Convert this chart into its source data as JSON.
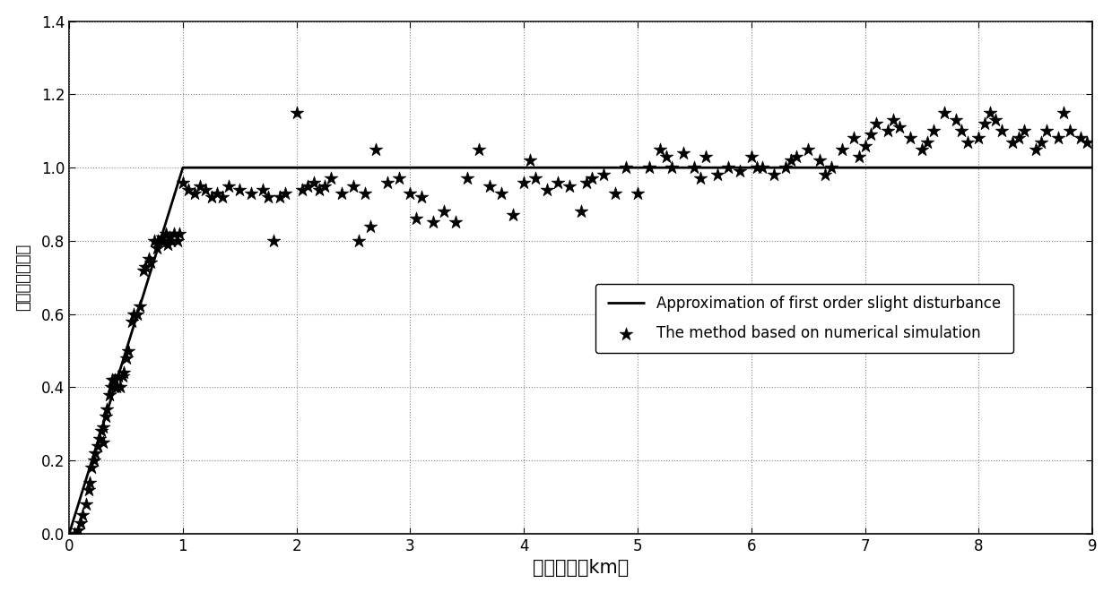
{
  "title": "",
  "xlabel": "光学厚度（km）",
  "ylabel": "归一化闪烁指数",
  "xlim": [
    0,
    9
  ],
  "ylim": [
    0,
    1.4
  ],
  "xticks": [
    0,
    1,
    2,
    3,
    4,
    5,
    6,
    7,
    8,
    9
  ],
  "yticks": [
    0,
    0.2,
    0.4,
    0.6,
    0.8,
    1.0,
    1.2,
    1.4
  ],
  "line_x": [
    0,
    1.0,
    9.0
  ],
  "line_y": [
    0,
    1.0,
    1.0
  ],
  "scatter_x": [
    0.05,
    0.08,
    0.1,
    0.12,
    0.15,
    0.17,
    0.18,
    0.2,
    0.22,
    0.23,
    0.25,
    0.27,
    0.28,
    0.3,
    0.3,
    0.32,
    0.33,
    0.35,
    0.37,
    0.38,
    0.4,
    0.4,
    0.42,
    0.43,
    0.45,
    0.47,
    0.48,
    0.5,
    0.52,
    0.55,
    0.57,
    0.6,
    0.62,
    0.65,
    0.67,
    0.7,
    0.72,
    0.75,
    0.77,
    0.78,
    0.8,
    0.82,
    0.83,
    0.85,
    0.87,
    0.88,
    0.9,
    0.92,
    0.95,
    0.97,
    1.0,
    1.05,
    1.1,
    1.15,
    1.2,
    1.25,
    1.3,
    1.35,
    1.4,
    1.5,
    1.6,
    1.7,
    1.75,
    1.8,
    1.85,
    1.9,
    2.0,
    2.05,
    2.1,
    2.15,
    2.2,
    2.25,
    2.3,
    2.4,
    2.5,
    2.55,
    2.6,
    2.65,
    2.7,
    2.8,
    2.9,
    3.0,
    3.05,
    3.1,
    3.2,
    3.3,
    3.4,
    3.5,
    3.6,
    3.7,
    3.8,
    3.9,
    4.0,
    4.05,
    4.1,
    4.2,
    4.3,
    4.4,
    4.5,
    4.55,
    4.6,
    4.7,
    4.8,
    4.9,
    5.0,
    5.1,
    5.2,
    5.25,
    5.3,
    5.4,
    5.5,
    5.55,
    5.6,
    5.7,
    5.8,
    5.9,
    6.0,
    6.05,
    6.1,
    6.2,
    6.3,
    6.35,
    6.4,
    6.5,
    6.6,
    6.65,
    6.7,
    6.8,
    6.9,
    6.95,
    7.0,
    7.05,
    7.1,
    7.2,
    7.25,
    7.3,
    7.4,
    7.5,
    7.55,
    7.6,
    7.7,
    7.8,
    7.85,
    7.9,
    8.0,
    8.05,
    8.1,
    8.15,
    8.2,
    8.3,
    8.35,
    8.4,
    8.5,
    8.55,
    8.6,
    8.7,
    8.75,
    8.8,
    8.9,
    8.95
  ],
  "scatter_y": [
    0.0,
    0.01,
    0.03,
    0.05,
    0.08,
    0.12,
    0.14,
    0.18,
    0.2,
    0.22,
    0.24,
    0.26,
    0.28,
    0.25,
    0.29,
    0.32,
    0.34,
    0.38,
    0.4,
    0.42,
    0.4,
    0.42,
    0.4,
    0.43,
    0.4,
    0.43,
    0.44,
    0.48,
    0.5,
    0.58,
    0.6,
    0.6,
    0.62,
    0.72,
    0.73,
    0.75,
    0.74,
    0.8,
    0.78,
    0.8,
    0.8,
    0.81,
    0.8,
    0.82,
    0.79,
    0.81,
    0.8,
    0.82,
    0.8,
    0.82,
    0.96,
    0.94,
    0.93,
    0.95,
    0.94,
    0.92,
    0.93,
    0.92,
    0.95,
    0.94,
    0.93,
    0.94,
    0.92,
    0.8,
    0.92,
    0.93,
    1.15,
    0.94,
    0.95,
    0.96,
    0.94,
    0.95,
    0.97,
    0.93,
    0.95,
    0.8,
    0.93,
    0.84,
    1.05,
    0.96,
    0.97,
    0.93,
    0.86,
    0.92,
    0.85,
    0.88,
    0.85,
    0.97,
    1.05,
    0.95,
    0.93,
    0.87,
    0.96,
    1.02,
    0.97,
    0.94,
    0.96,
    0.95,
    0.88,
    0.96,
    0.97,
    0.98,
    0.93,
    1.0,
    0.93,
    1.0,
    1.05,
    1.03,
    1.0,
    1.04,
    1.0,
    0.97,
    1.03,
    0.98,
    1.0,
    0.99,
    1.03,
    1.0,
    1.0,
    0.98,
    1.0,
    1.02,
    1.03,
    1.05,
    1.02,
    0.98,
    1.0,
    1.05,
    1.08,
    1.03,
    1.06,
    1.09,
    1.12,
    1.1,
    1.13,
    1.11,
    1.08,
    1.05,
    1.07,
    1.1,
    1.15,
    1.13,
    1.1,
    1.07,
    1.08,
    1.12,
    1.15,
    1.13,
    1.1,
    1.07,
    1.08,
    1.1,
    1.05,
    1.07,
    1.1,
    1.08,
    1.15,
    1.1,
    1.08,
    1.07
  ],
  "legend_line": "Approximation of first order slight disturbance",
  "legend_scatter": "The method based on numerical simulation",
  "bg_color": "#ffffff",
  "line_color": "#000000",
  "scatter_color": "#000000",
  "grid_color": "#888888",
  "xlabel_fontsize": 15,
  "ylabel_fontsize": 13,
  "tick_fontsize": 12,
  "legend_fontsize": 12
}
